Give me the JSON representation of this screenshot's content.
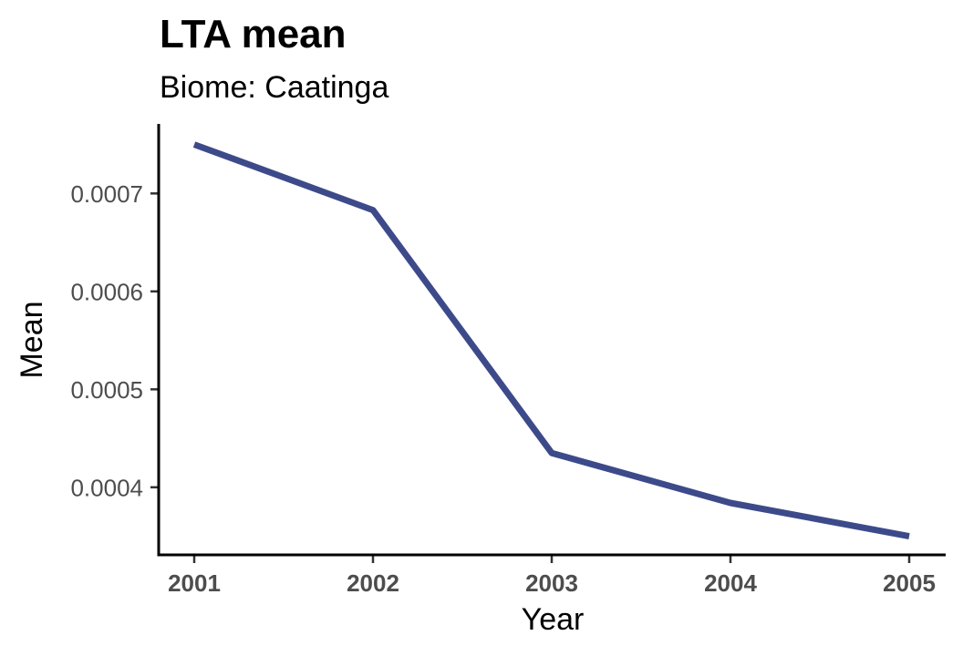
{
  "chart_data": {
    "type": "line",
    "title": "LTA mean",
    "subtitle": "Biome: Caatinga",
    "xlabel": "Year",
    "ylabel": "Mean",
    "x": [
      "2001",
      "2002",
      "2003",
      "2004",
      "2005"
    ],
    "series": [
      {
        "values": [
          0.00075,
          0.000683,
          0.000435,
          0.000384,
          0.00035
        ],
        "color": "#3d4a8a"
      }
    ],
    "yticks": [
      0.0004,
      0.0005,
      0.0006,
      0.0007
    ],
    "ytick_labels": [
      "0.0004",
      "0.0005",
      "0.0006",
      "0.0007"
    ],
    "ylim": [
      0.000331,
      0.000771
    ],
    "grid": false,
    "legend": "none"
  }
}
